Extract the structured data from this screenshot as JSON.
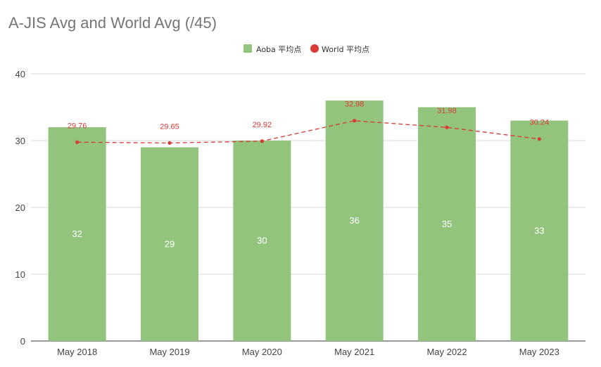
{
  "chart_data": {
    "type": "bar",
    "title": "A-JIS Avg and World Avg (/45)",
    "categories": [
      "May 2018",
      "May 2019",
      "May 2020",
      "May 2021",
      "May 2022",
      "May 2023"
    ],
    "series": [
      {
        "name": "Aoba 平均点",
        "type": "bar",
        "color": "#93c47d",
        "values": [
          32,
          29,
          30,
          36,
          35,
          33
        ]
      },
      {
        "name": "World 平均点",
        "type": "line",
        "style": "dashed",
        "color": "#d93b35",
        "values": [
          29.76,
          29.65,
          29.92,
          32.98,
          31.98,
          30.24
        ]
      }
    ],
    "ylim": [
      0,
      40
    ],
    "yticks": [
      0,
      10,
      20,
      30,
      40
    ],
    "grid": true,
    "legend": "top-center"
  }
}
